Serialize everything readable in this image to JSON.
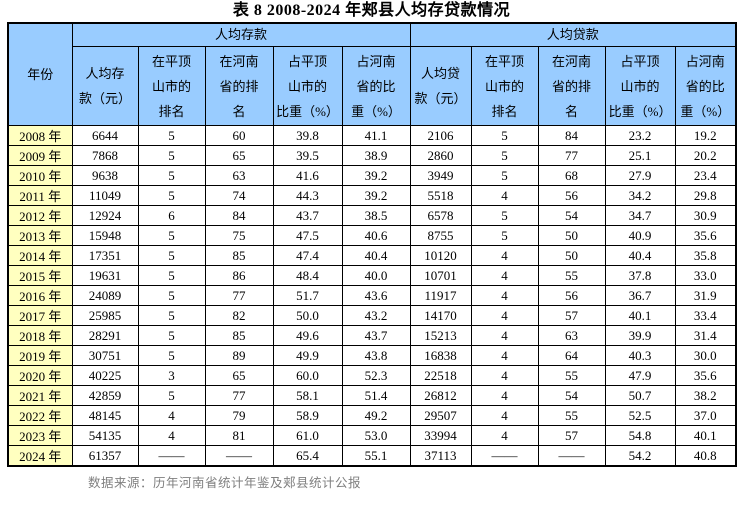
{
  "title": "表 8  2008-2024 年郏县人均存贷款情况",
  "colors": {
    "header_bg": "#99CCFF",
    "year_column_bg": "#FFFFC0",
    "grid_border": "#000000",
    "source_text": "#7f7f7f"
  },
  "table": {
    "year_header": "年份",
    "deposit_group": "人均存款",
    "loan_group": "人均贷款",
    "deposit_columns": [
      "人均存\n款（元）",
      "在平顶\n山市的\n排名",
      "在河南\n省的排\n名",
      "占平顶\n山市的\n比重（%）",
      "占河南\n省的比\n重（%）"
    ],
    "loan_columns": [
      "人均贷\n款（元）",
      "在平顶\n山市的\n排名",
      "在河南\n省的排\n名",
      "占平顶\n山市的\n比重（%）",
      "占河南\n省的比\n重（%）"
    ],
    "rows": [
      {
        "year": "2008 年",
        "cells": [
          "6644",
          "5",
          "60",
          "39.8",
          "41.1",
          "2106",
          "5",
          "84",
          "23.2",
          "19.2"
        ]
      },
      {
        "year": "2009 年",
        "cells": [
          "7868",
          "5",
          "65",
          "39.5",
          "38.9",
          "2860",
          "5",
          "77",
          "25.1",
          "20.2"
        ]
      },
      {
        "year": "2010 年",
        "cells": [
          "9638",
          "5",
          "63",
          "41.6",
          "39.2",
          "3949",
          "5",
          "68",
          "27.9",
          "23.4"
        ]
      },
      {
        "year": "2011 年",
        "cells": [
          "11049",
          "5",
          "74",
          "44.3",
          "39.2",
          "5518",
          "4",
          "56",
          "34.2",
          "29.8"
        ]
      },
      {
        "year": "2012 年",
        "cells": [
          "12924",
          "6",
          "84",
          "43.7",
          "38.5",
          "6578",
          "5",
          "54",
          "34.7",
          "30.9"
        ]
      },
      {
        "year": "2013 年",
        "cells": [
          "15948",
          "5",
          "75",
          "47.5",
          "40.6",
          "8755",
          "5",
          "50",
          "40.9",
          "35.6"
        ]
      },
      {
        "year": "2014 年",
        "cells": [
          "17351",
          "5",
          "85",
          "47.4",
          "40.4",
          "10120",
          "4",
          "50",
          "40.4",
          "35.8"
        ]
      },
      {
        "year": "2015 年",
        "cells": [
          "19631",
          "5",
          "86",
          "48.4",
          "40.0",
          "10701",
          "4",
          "55",
          "37.8",
          "33.0"
        ]
      },
      {
        "year": "2016 年",
        "cells": [
          "24089",
          "5",
          "77",
          "51.7",
          "43.6",
          "11917",
          "4",
          "56",
          "36.7",
          "31.9"
        ]
      },
      {
        "year": "2017 年",
        "cells": [
          "25985",
          "5",
          "82",
          "50.0",
          "43.2",
          "14170",
          "4",
          "57",
          "40.1",
          "33.4"
        ]
      },
      {
        "year": "2018 年",
        "cells": [
          "28291",
          "5",
          "85",
          "49.6",
          "43.7",
          "15213",
          "4",
          "63",
          "39.9",
          "31.4"
        ]
      },
      {
        "year": "2019 年",
        "cells": [
          "30751",
          "5",
          "89",
          "49.9",
          "43.8",
          "16838",
          "4",
          "64",
          "40.3",
          "30.0"
        ]
      },
      {
        "year": "2020 年",
        "cells": [
          "40225",
          "3",
          "65",
          "60.0",
          "52.3",
          "22518",
          "4",
          "55",
          "47.9",
          "35.6"
        ]
      },
      {
        "year": "2021 年",
        "cells": [
          "42859",
          "5",
          "77",
          "58.1",
          "51.4",
          "26812",
          "4",
          "54",
          "50.7",
          "38.2"
        ]
      },
      {
        "year": "2022 年",
        "cells": [
          "48145",
          "4",
          "79",
          "58.9",
          "49.2",
          "29507",
          "4",
          "55",
          "52.5",
          "37.0"
        ]
      },
      {
        "year": "2023 年",
        "cells": [
          "54135",
          "4",
          "81",
          "61.0",
          "53.0",
          "33994",
          "4",
          "57",
          "54.8",
          "40.1"
        ]
      },
      {
        "year": "2024 年",
        "cells": [
          "61357",
          "——",
          "——",
          "65.4",
          "55.1",
          "37113",
          "——",
          "——",
          "54.2",
          "40.8"
        ]
      }
    ]
  },
  "footer": {
    "source": "数据来源：历年河南省统计年鉴及郏县统计公报"
  }
}
